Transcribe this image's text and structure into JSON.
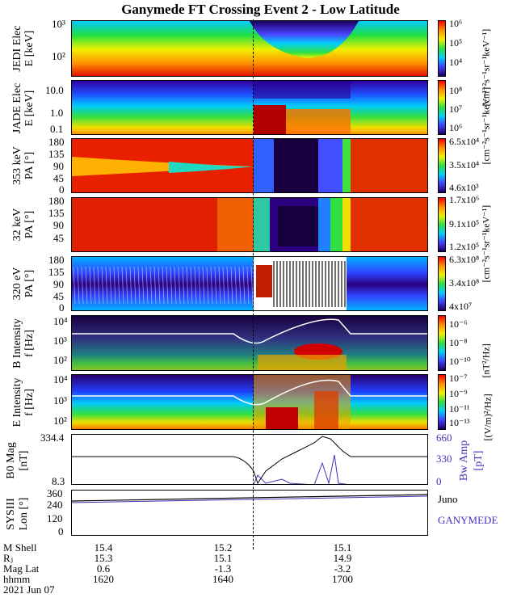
{
  "title": "Ganymede FT Crossing Event 2 - Low Latitude",
  "colors": {
    "accent_purple": "#4a2fb8",
    "trace_white": "#ffffff"
  },
  "panels": [
    {
      "id": "jedi",
      "label_line1": "JEDI Elec",
      "label_line2": "E [keV]",
      "yticks": [
        "10³",
        "10²"
      ],
      "cbar_ticks": [
        "10⁶",
        "10⁵",
        "10⁴"
      ],
      "cbar_unit": "[cm⁻²s⁻¹sr⁻¹keV⁻¹]"
    },
    {
      "id": "jade",
      "label_line1": "JADE Elec",
      "label_line2": "E [keV]",
      "yticks": [
        "10.0",
        "1.0",
        "0.1"
      ],
      "cbar_ticks": [
        "10⁸",
        "10⁷",
        "10⁶"
      ],
      "cbar_unit": "[cm⁻²s⁻¹sr⁻¹keV⁻¹]"
    },
    {
      "id": "pa353",
      "label_line1": "353 keV",
      "label_line2": "PA [°]",
      "yticks": [
        "180",
        "135",
        "90",
        "45",
        "0"
      ],
      "cbar_ticks": [
        "6.5x10⁴",
        "3.5x10⁴",
        "4.6x10³"
      ]
    },
    {
      "id": "pa32",
      "label_line1": "32 keV",
      "label_line2": "PA [°]",
      "yticks": [
        "180",
        "135",
        "90",
        "45"
      ],
      "cbar_ticks": [
        "1.7x10⁶",
        "9.1x10⁵",
        "1.2x10⁵"
      ],
      "cbar_unit": "[cm⁻²s⁻¹sr⁻¹keV⁻¹]"
    },
    {
      "id": "pa320",
      "label_line1": "320 eV",
      "label_line2": "PA [°]",
      "yticks": [
        "180",
        "135",
        "90",
        "45",
        "0"
      ],
      "cbar_ticks": [
        "6.3x10⁸",
        "3.4x10⁸",
        "4x10⁷"
      ]
    },
    {
      "id": "bint",
      "label_line1": "B Intensity",
      "label_line2": "f [Hz]",
      "yticks": [
        "10⁴",
        "10³",
        "10²"
      ],
      "cbar_ticks": [
        "10⁻⁶",
        "10⁻⁸",
        "10⁻¹⁰"
      ],
      "cbar_unit": "[nT²/Hz]"
    },
    {
      "id": "eint",
      "label_line1": "E Intensity",
      "label_line2": "f [Hz]",
      "yticks": [
        "10⁴",
        "10³",
        "10²"
      ],
      "cbar_ticks": [
        "10⁻⁷",
        "10⁻⁹",
        "10⁻¹¹",
        "10⁻¹³"
      ],
      "cbar_unit": "[(V/m)²/Hz]"
    }
  ],
  "mag_panel": {
    "label_line1": "B0 Mag",
    "label_line2": "[nT]",
    "left_ticks": [
      "334.4",
      "8.3"
    ],
    "right_label_line1": "Bw Amp",
    "right_label_line2": "[pT]",
    "right_ticks": [
      "660",
      "330",
      "0"
    ]
  },
  "sys_panel": {
    "label_line1": "SYSIII",
    "label_line2": "Lon [°]",
    "yticks": [
      "360",
      "240",
      "120",
      "0"
    ],
    "legend_juno": "Juno",
    "legend_ganymede": "GANYMEDE"
  },
  "ephemeris": {
    "rows": [
      {
        "label": "M Shell",
        "values": [
          "15.4",
          "15.2",
          "15.1"
        ]
      },
      {
        "label": "Rⱼ",
        "values": [
          "15.3",
          "15.1",
          "14.9"
        ]
      },
      {
        "label": "Mag Lat",
        "values": [
          "0.6",
          "-1.3",
          "-3.2"
        ]
      },
      {
        "label": "hhmm",
        "values": [
          "1620",
          "1640",
          "1700"
        ]
      }
    ],
    "date": "2021 Jun 07"
  },
  "chart_data": [
    {
      "type": "heatmap",
      "title": "Ganymede FT Crossing Event 2 - Low Latitude",
      "ylabel": "JEDI Elec E [keV]",
      "y_scale": "log",
      "ylim": [
        30,
        1000
      ],
      "color_range": [
        "10⁴",
        "10⁶"
      ],
      "color_unit": "cm⁻²s⁻¹sr⁻¹keV⁻¹"
    },
    {
      "type": "heatmap",
      "ylabel": "JADE Elec E [keV]",
      "y_scale": "log",
      "ylim": [
        0.08,
        20
      ],
      "color_range": [
        "10⁶",
        "10⁸"
      ],
      "color_unit": "cm⁻²s⁻¹sr⁻¹keV⁻¹"
    },
    {
      "type": "heatmap",
      "ylabel": "353 keV PA [°]",
      "ylim": [
        0,
        180
      ],
      "color_range": [
        "4.6x10³",
        "6.5x10⁴"
      ]
    },
    {
      "type": "heatmap",
      "ylabel": "32 keV PA [°]",
      "ylim": [
        0,
        180
      ],
      "color_range": [
        "1.2x10⁵",
        "1.7x10⁶"
      ]
    },
    {
      "type": "heatmap",
      "ylabel": "320 eV PA [°]",
      "ylim": [
        0,
        180
      ],
      "color_range": [
        "4x10⁷",
        "6.3x10⁸"
      ]
    },
    {
      "type": "heatmap",
      "ylabel": "B Intensity f [Hz]",
      "y_scale": "log",
      "ylim": [
        50,
        20000
      ],
      "color_range": [
        "10⁻¹⁰",
        "10⁻⁶"
      ],
      "color_unit": "nT²/Hz"
    },
    {
      "type": "heatmap",
      "ylabel": "E Intensity f [Hz]",
      "y_scale": "log",
      "ylim": [
        50,
        20000
      ],
      "color_range": [
        "10⁻¹³",
        "10⁻⁷"
      ],
      "color_unit": "(V/m)²/Hz"
    },
    {
      "type": "line",
      "ylabel": "B0 Mag [nT]",
      "ylim": [
        8.3,
        334.4
      ],
      "x": [
        "1620",
        "1640",
        "1700"
      ],
      "series": [
        {
          "name": "B0 Mag",
          "values": [
            250,
            248,
            248
          ]
        },
        {
          "name": "Bw Amp",
          "values": [
            10,
            40,
            60
          ]
        }
      ]
    },
    {
      "type": "line",
      "ylabel": "SYSIII Lon [°]",
      "ylim": [
        0,
        360
      ],
      "x": [
        "1620",
        "1640",
        "1700"
      ],
      "series": [
        {
          "name": "Juno",
          "values": [
            270,
            290,
            310
          ]
        }
      ]
    }
  ]
}
